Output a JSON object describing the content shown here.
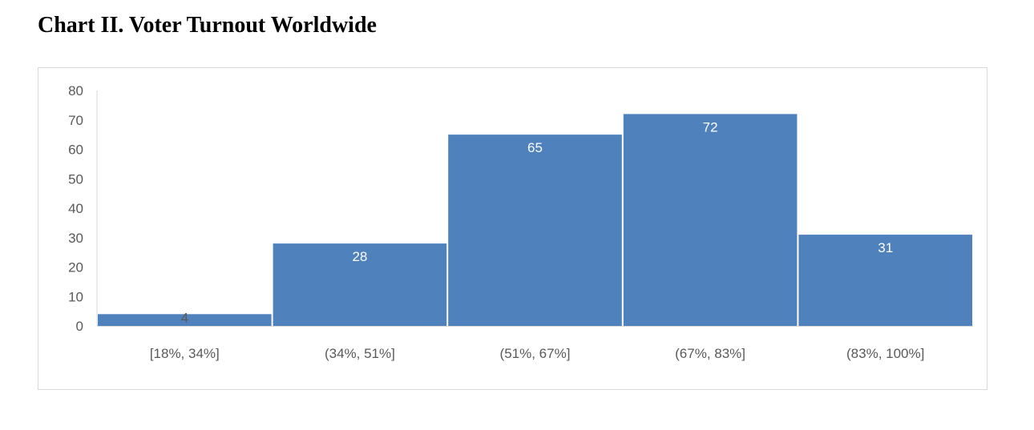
{
  "chart_data": {
    "type": "bar",
    "title": "Chart II. Voter Turnout Worldwide",
    "categories": [
      "[18%, 34%]",
      "(34%, 51%]",
      "(51%, 67%]",
      "(67%, 83%]",
      "(83%, 100%]"
    ],
    "values": [
      4,
      28,
      65,
      72,
      31
    ],
    "ylim": [
      0,
      80
    ],
    "yticks": [
      0,
      10,
      20,
      30,
      40,
      50,
      60,
      70,
      80
    ],
    "grid": false,
    "bar_color": "#4f81bd",
    "data_labels": true
  }
}
